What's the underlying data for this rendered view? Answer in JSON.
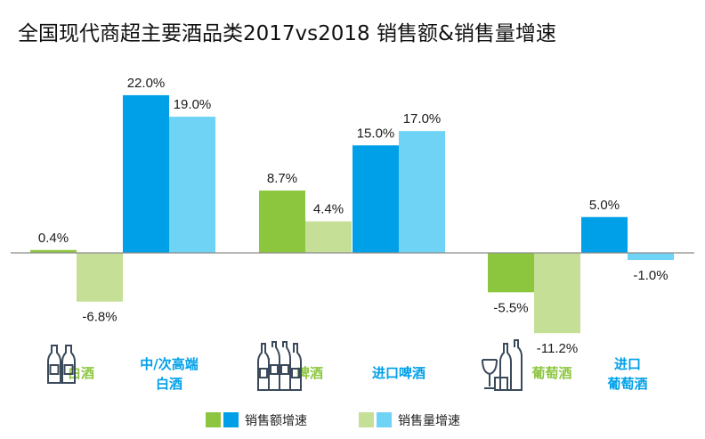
{
  "chart_data": {
    "type": "bar",
    "title": "全国现代商超主要酒品类2017vs2018 销售额&销售量增速",
    "categories": [
      "白酒",
      "中/次高端白酒",
      "啤酒",
      "进口啤酒",
      "葡萄酒",
      "进口葡萄酒"
    ],
    "category_labels": [
      [
        "白酒"
      ],
      [
        "中/次高端",
        "白酒"
      ],
      [
        "啤酒"
      ],
      [
        "进口啤酒"
      ],
      [
        "葡萄酒"
      ],
      [
        "进口",
        "葡萄酒"
      ]
    ],
    "category_label_colors": [
      "#8cc63f",
      "#00a0e9",
      "#8cc63f",
      "#00a0e9",
      "#8cc63f",
      "#00a0e9"
    ],
    "series": [
      {
        "name": "销售额增速",
        "values": [
          0.4,
          22.0,
          8.7,
          15.0,
          -5.5,
          5.0
        ],
        "labels": [
          "0.4%",
          "22.0%",
          "8.7%",
          "15.0%",
          "-5.5%",
          "5.0%"
        ]
      },
      {
        "name": "销售量增速",
        "values": [
          -6.8,
          19.0,
          4.4,
          17.0,
          -11.2,
          -1.0
        ],
        "labels": [
          "-6.8%",
          "19.0%",
          "4.4%",
          "17.0%",
          "-11.2%",
          "-1.0%"
        ]
      }
    ],
    "bar_colors": {
      "domestic": [
        "#8cc63f",
        "#c5df97"
      ],
      "imported": [
        "#00a0e9",
        "#6fd3f5"
      ]
    },
    "legend": [
      {
        "label": "销售额增速",
        "colors": [
          "#8cc63f",
          "#00a0e9"
        ]
      },
      {
        "label": "销售量增速",
        "colors": [
          "#c5df97",
          "#6fd3f5"
        ]
      }
    ],
    "unit": "%",
    "axis_color": "#8c8c8c"
  },
  "icons": [
    "bottles-icon",
    "beer-bottles-icon",
    "wine-glasses-icon"
  ]
}
